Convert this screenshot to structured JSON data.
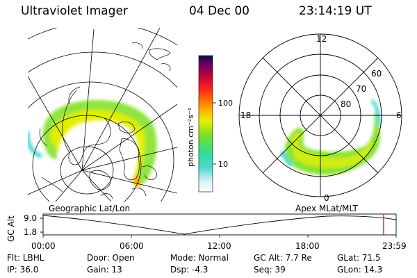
{
  "header": {
    "title": "Ultraviolet Imager",
    "date": "04 Dec 00",
    "time": "23:14:19 UT"
  },
  "colorbar": {
    "label": "photon cm⁻²s⁻¹",
    "ticks": [
      "100",
      "10"
    ]
  },
  "polar": {
    "caption": "Apex MLat/MLT",
    "mlt_labels": [
      "12",
      "18",
      "6",
      "0"
    ],
    "lat_labels": [
      "60",
      "70",
      "80"
    ]
  },
  "geo": {
    "caption": "Geographic Lat/Lon"
  },
  "altitude_plot": {
    "ylabel": "GC Alt",
    "yticks": [
      "9.0",
      "1.8"
    ],
    "xticks": [
      "00:00",
      "06:00",
      "12:00",
      "18:00",
      "23:59"
    ]
  },
  "info": {
    "row1": [
      {
        "label": "Flt:",
        "value": "LBHL"
      },
      {
        "label": "Door:",
        "value": "Open"
      },
      {
        "label": "Mode:",
        "value": "Normal"
      },
      {
        "label": "GC Alt:",
        "value": "7.7 Re"
      },
      {
        "label": "GLat:",
        "value": "71.5"
      }
    ],
    "row2": [
      {
        "label": "IP:",
        "value": "36.0"
      },
      {
        "label": "Gain:",
        "value": "13"
      },
      {
        "label": "Dsp:",
        "value": "-4.3"
      },
      {
        "label": "Seq:",
        "value": "39"
      },
      {
        "label": "GLon:",
        "value": "14.3"
      }
    ]
  }
}
